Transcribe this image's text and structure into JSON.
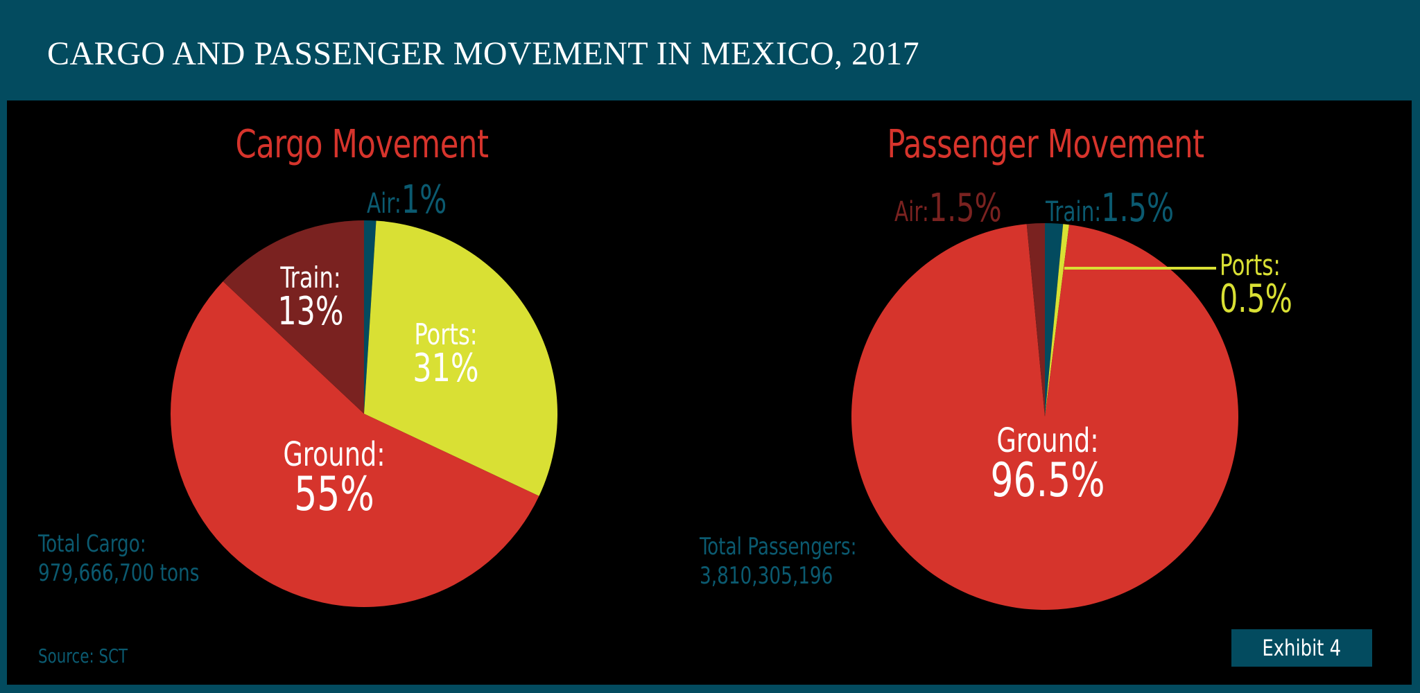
{
  "header": {
    "title": "CARGO AND PASSENGER MOVEMENT IN MEXICO, 2017"
  },
  "colors": {
    "header_bg": "#034b5f",
    "panel_bg": "#000000",
    "ground": "#d6342c",
    "ports": "#d9e034",
    "train_cargo": "#7a2220",
    "air_cargo": "#034b5f",
    "air_passenger": "#7a2220",
    "train_passenger": "#034b5f",
    "title_red": "#d6342c",
    "note_teal": "#0b5a70"
  },
  "cargo": {
    "title": "Cargo Movement",
    "labels": {
      "air_name": "Air:",
      "air_pct": "1%",
      "train_name": "Train:",
      "train_pct": "13%",
      "ports_name": "Ports:",
      "ports_pct": "31%",
      "ground_name": "Ground:",
      "ground_pct": "55%"
    },
    "total_label": "Total Cargo:",
    "total_value": "979,666,700 tons"
  },
  "passenger": {
    "title": "Passenger Movement",
    "labels": {
      "air_name": "Air:",
      "air_pct": "1.5%",
      "train_name": "Train:",
      "train_pct": "1.5%",
      "ports_name": "Ports:",
      "ports_pct": "0.5%",
      "ground_name": "Ground:",
      "ground_pct": "96.5%"
    },
    "total_label": "Total Passengers:",
    "total_value": "3,810,305,196"
  },
  "footer": {
    "source": "Source: SCT",
    "exhibit": "Exhibit 4"
  },
  "chart_data": [
    {
      "type": "pie",
      "title": "Cargo Movement",
      "categories": [
        "Air",
        "Ports",
        "Ground",
        "Train"
      ],
      "values": [
        1,
        31,
        55,
        13
      ],
      "unit": "%",
      "colors": [
        "#034b5f",
        "#d9e034",
        "#d6342c",
        "#7a2220"
      ],
      "start_angle_deg": 0,
      "direction": "clockwise",
      "total": "979,666,700 tons",
      "center": [
        525,
        597
      ],
      "radius": 279
    },
    {
      "type": "pie",
      "title": "Passenger Movement",
      "categories": [
        "Train",
        "Ports",
        "Ground",
        "Air"
      ],
      "values": [
        1.5,
        0.5,
        96.5,
        1.5
      ],
      "unit": "%",
      "colors": [
        "#034b5f",
        "#d9e034",
        "#d6342c",
        "#7a2220"
      ],
      "start_angle_deg": 0,
      "direction": "clockwise",
      "total": "3,810,305,196",
      "center": [
        1507,
        601
      ],
      "radius": 279
    }
  ]
}
